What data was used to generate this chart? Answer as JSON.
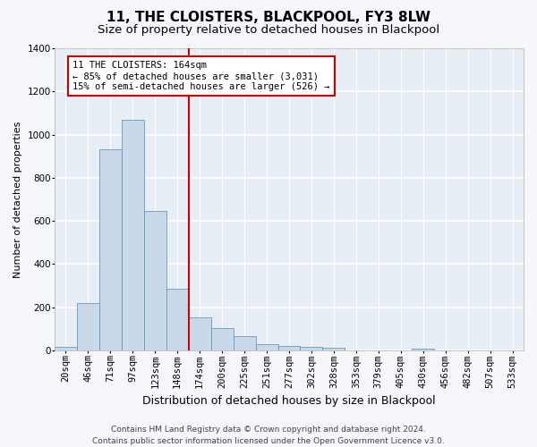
{
  "title": "11, THE CLOISTERS, BLACKPOOL, FY3 8LW",
  "subtitle": "Size of property relative to detached houses in Blackpool",
  "xlabel": "Distribution of detached houses by size in Blackpool",
  "ylabel": "Number of detached properties",
  "bar_values": [
    15,
    220,
    930,
    1070,
    645,
    285,
    155,
    105,
    65,
    30,
    20,
    18,
    12,
    0,
    0,
    0,
    8,
    0,
    0,
    0,
    0
  ],
  "bin_labels": [
    "20sqm",
    "46sqm",
    "71sqm",
    "97sqm",
    "123sqm",
    "148sqm",
    "174sqm",
    "200sqm",
    "225sqm",
    "251sqm",
    "277sqm",
    "302sqm",
    "328sqm",
    "353sqm",
    "379sqm",
    "405sqm",
    "430sqm",
    "456sqm",
    "482sqm",
    "507sqm",
    "533sqm"
  ],
  "bar_color": "#c9d9ea",
  "bar_edge_color": "#6699bb",
  "plot_bg_color": "#e8eef5",
  "fig_bg_color": "#f5f7fa",
  "grid_color": "#ffffff",
  "vline_color": "#cc0000",
  "vline_x_index": 5.5,
  "annotation_text": "11 THE CLOISTERS: 164sqm\n← 85% of detached houses are smaller (3,031)\n15% of semi-detached houses are larger (526) →",
  "annotation_box_facecolor": "#ffffff",
  "annotation_box_edgecolor": "#cc0000",
  "ylim": [
    0,
    1400
  ],
  "yticks": [
    0,
    200,
    400,
    600,
    800,
    1000,
    1200,
    1400
  ],
  "title_fontsize": 11,
  "subtitle_fontsize": 9.5,
  "xlabel_fontsize": 9,
  "ylabel_fontsize": 8,
  "tick_fontsize": 7.5,
  "annotation_fontsize": 7.5,
  "footer_fontsize": 6.5,
  "footer": "Contains HM Land Registry data © Crown copyright and database right 2024.\nContains public sector information licensed under the Open Government Licence v3.0."
}
